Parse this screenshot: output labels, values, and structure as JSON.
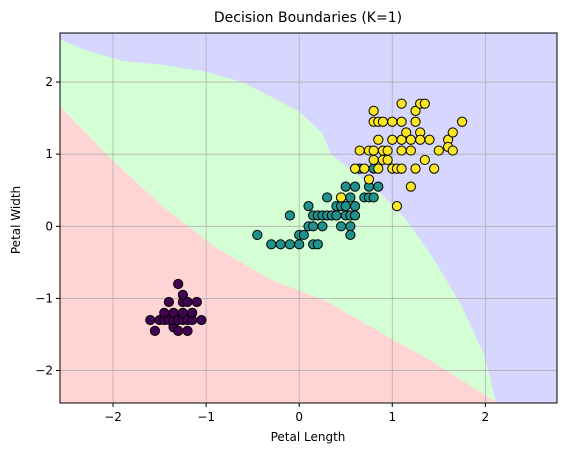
{
  "chart_data": {
    "type": "scatter",
    "title": "Decision Boundaries (K=1)",
    "xlabel": "Petal Length",
    "ylabel": "Petal Width",
    "xlim": [
      -2.57,
      2.77
    ],
    "ylim": [
      -2.45,
      2.68
    ],
    "xticks": [
      -2,
      -1,
      0,
      1,
      2
    ],
    "yticks": [
      -2,
      -1,
      0,
      1,
      2
    ],
    "xtick_labels": [
      "−2",
      "−1",
      "0",
      "1",
      "2"
    ],
    "ytick_labels": [
      "−2",
      "−1",
      "0",
      "1",
      "2"
    ],
    "grid": true,
    "legend": "none",
    "colors": {
      "region_0": "#ffd4d4",
      "region_1": "#d4ffd4",
      "region_2": "#d6d6ff",
      "class_0": "#440154",
      "class_1": "#21918c",
      "class_2": "#fde725",
      "grid": "#b0b0b0"
    },
    "regions": [
      {
        "class": 0,
        "polygon": [
          [
            -2.57,
            -2.45
          ],
          [
            2.12,
            -2.45
          ],
          [
            1.45,
            -1.9
          ],
          [
            0.9,
            -1.5
          ],
          [
            0.3,
            -1.05
          ],
          [
            -0.3,
            -0.75
          ],
          [
            -0.9,
            -0.3
          ],
          [
            -1.5,
            0.3
          ],
          [
            -2.0,
            0.9
          ],
          [
            -2.57,
            1.65
          ]
        ]
      },
      {
        "class": 2,
        "polygon": [
          [
            -2.57,
            2.6
          ],
          [
            -2.3,
            2.45
          ],
          [
            -1.9,
            2.3
          ],
          [
            -1.5,
            2.25
          ],
          [
            -1.0,
            2.15
          ],
          [
            -0.6,
            2.0
          ],
          [
            -0.3,
            1.8
          ],
          [
            0.0,
            1.6
          ],
          [
            0.25,
            1.3
          ],
          [
            0.35,
            1.0
          ],
          [
            0.6,
            0.75
          ],
          [
            0.85,
            0.5
          ],
          [
            1.15,
            0.1
          ],
          [
            1.45,
            -0.45
          ],
          [
            1.75,
            -1.1
          ],
          [
            2.0,
            -1.8
          ],
          [
            2.12,
            -2.45
          ],
          [
            2.77,
            -2.45
          ],
          [
            2.77,
            2.68
          ],
          [
            -2.57,
            2.68
          ]
        ]
      }
    ],
    "series": [
      {
        "class": 0,
        "points": [
          [
            -1.6,
            -1.3
          ],
          [
            -1.55,
            -1.45
          ],
          [
            -1.5,
            -1.3
          ],
          [
            -1.45,
            -1.3
          ],
          [
            -1.45,
            -1.2
          ],
          [
            -1.4,
            -1.3
          ],
          [
            -1.4,
            -1.05
          ],
          [
            -1.35,
            -1.4
          ],
          [
            -1.35,
            -1.3
          ],
          [
            -1.35,
            -1.2
          ],
          [
            -1.3,
            -1.3
          ],
          [
            -1.3,
            -1.45
          ],
          [
            -1.3,
            -0.8
          ],
          [
            -1.25,
            -1.3
          ],
          [
            -1.25,
            -1.2
          ],
          [
            -1.25,
            -1.05
          ],
          [
            -1.25,
            -0.95
          ],
          [
            -1.2,
            -1.3
          ],
          [
            -1.2,
            -1.45
          ],
          [
            -1.2,
            -1.05
          ],
          [
            -1.15,
            -1.3
          ],
          [
            -1.15,
            -1.2
          ],
          [
            -1.1,
            -1.05
          ],
          [
            -1.05,
            -1.3
          ]
        ]
      },
      {
        "class": 1,
        "points": [
          [
            -0.45,
            -0.12
          ],
          [
            -0.3,
            -0.25
          ],
          [
            -0.2,
            -0.25
          ],
          [
            -0.1,
            0.15
          ],
          [
            -0.1,
            -0.25
          ],
          [
            0.0,
            -0.25
          ],
          [
            0.0,
            -0.12
          ],
          [
            0.05,
            -0.12
          ],
          [
            0.1,
            0.0
          ],
          [
            0.1,
            0.28
          ],
          [
            0.15,
            0.15
          ],
          [
            0.15,
            0.0
          ],
          [
            0.15,
            -0.25
          ],
          [
            0.2,
            0.15
          ],
          [
            0.2,
            -0.25
          ],
          [
            0.25,
            0.0
          ],
          [
            0.25,
            0.15
          ],
          [
            0.3,
            0.15
          ],
          [
            0.3,
            0.4
          ],
          [
            0.35,
            0.15
          ],
          [
            0.4,
            0.15
          ],
          [
            0.4,
            0.28
          ],
          [
            0.45,
            0.0
          ],
          [
            0.45,
            0.28
          ],
          [
            0.45,
            0.4
          ],
          [
            0.5,
            0.15
          ],
          [
            0.5,
            0.28
          ],
          [
            0.5,
            0.55
          ],
          [
            0.55,
            0.15
          ],
          [
            0.55,
            0.0
          ],
          [
            0.55,
            -0.12
          ],
          [
            0.55,
            0.4
          ],
          [
            0.6,
            0.15
          ],
          [
            0.6,
            0.28
          ],
          [
            0.6,
            0.55
          ],
          [
            0.65,
            0.8
          ],
          [
            0.7,
            0.4
          ],
          [
            0.75,
            0.55
          ],
          [
            0.75,
            0.4
          ],
          [
            0.8,
            0.4
          ],
          [
            0.8,
            0.8
          ],
          [
            0.85,
            0.55
          ]
        ]
      },
      {
        "class": 2,
        "points": [
          [
            0.45,
            0.4
          ],
          [
            0.6,
            0.8
          ],
          [
            0.65,
            1.05
          ],
          [
            0.7,
            0.8
          ],
          [
            0.75,
            1.05
          ],
          [
            0.75,
            0.65
          ],
          [
            0.8,
            1.45
          ],
          [
            0.8,
            1.6
          ],
          [
            0.8,
            1.05
          ],
          [
            0.8,
            0.92
          ],
          [
            0.85,
            1.45
          ],
          [
            0.85,
            1.2
          ],
          [
            0.85,
            0.8
          ],
          [
            0.9,
            1.05
          ],
          [
            0.9,
            1.45
          ],
          [
            0.9,
            0.92
          ],
          [
            0.95,
            1.05
          ],
          [
            0.95,
            0.92
          ],
          [
            1.0,
            1.45
          ],
          [
            1.0,
            1.2
          ],
          [
            1.0,
            0.8
          ],
          [
            1.05,
            0.8
          ],
          [
            1.05,
            0.28
          ],
          [
            1.1,
            1.7
          ],
          [
            1.1,
            1.45
          ],
          [
            1.1,
            1.2
          ],
          [
            1.1,
            1.05
          ],
          [
            1.1,
            0.8
          ],
          [
            1.15,
            1.3
          ],
          [
            1.2,
            1.05
          ],
          [
            1.2,
            1.2
          ],
          [
            1.2,
            0.55
          ],
          [
            1.25,
            0.8
          ],
          [
            1.25,
            1.45
          ],
          [
            1.25,
            1.6
          ],
          [
            1.3,
            1.7
          ],
          [
            1.3,
            1.3
          ],
          [
            1.3,
            1.2
          ],
          [
            1.35,
            1.7
          ],
          [
            1.35,
            0.92
          ],
          [
            1.4,
            1.2
          ],
          [
            1.45,
            0.8
          ],
          [
            1.5,
            1.05
          ],
          [
            1.6,
            1.2
          ],
          [
            1.6,
            1.1
          ],
          [
            1.65,
            1.3
          ],
          [
            1.65,
            1.05
          ],
          [
            1.75,
            1.45
          ]
        ]
      }
    ]
  }
}
